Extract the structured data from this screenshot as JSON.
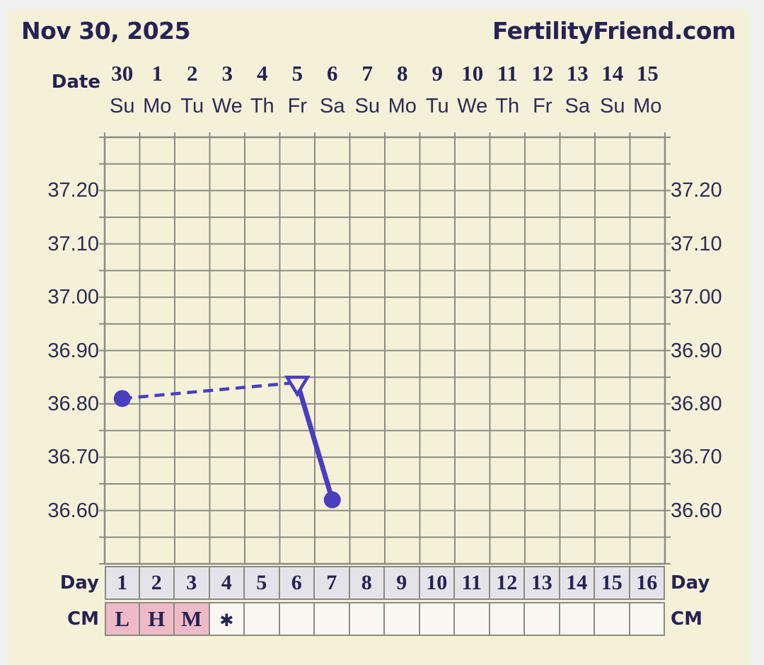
{
  "header": {
    "date": "Nov 30, 2025",
    "site": "FertilityFriend.com"
  },
  "labels": {
    "date_axis": "Date",
    "day_left": "Day",
    "day_right": "Day",
    "cm_left": "CM",
    "cm_right": "CM"
  },
  "colors": {
    "background": "#f5f1d8",
    "frame": "#f0f0f0",
    "navy_text": "#262254",
    "axis_text": "#2e2a55",
    "grid": "#8b8b84",
    "series": "#4a3ec0",
    "day_cell_bg": "#e4e3e9",
    "cm_cell_bg": "#f8f8f1",
    "cm_pink_bg": "#eebac7"
  },
  "chart_data": {
    "type": "line",
    "title": "Basal body temperature chart",
    "x": {
      "dates": [
        "30",
        "1",
        "2",
        "3",
        "4",
        "5",
        "6",
        "7",
        "8",
        "9",
        "10",
        "11",
        "12",
        "13",
        "14",
        "15"
      ],
      "weekdays": [
        "Su",
        "Mo",
        "Tu",
        "We",
        "Th",
        "Fr",
        "Sa",
        "Su",
        "Mo",
        "Tu",
        "We",
        "Th",
        "Fr",
        "Sa",
        "Su",
        "Mo"
      ],
      "cycle_days": [
        "1",
        "2",
        "3",
        "4",
        "5",
        "6",
        "7",
        "8",
        "9",
        "10",
        "11",
        "12",
        "13",
        "14",
        "15",
        "16"
      ]
    },
    "y": {
      "min": 36.5,
      "max": 37.3,
      "grid_step": 0.05,
      "tick_labels": [
        "37.20",
        "37.10",
        "37.00",
        "36.90",
        "36.80",
        "36.70",
        "36.60"
      ]
    },
    "grid": true,
    "series": [
      {
        "name": "temperature",
        "color": "#4a3ec0",
        "points": [
          {
            "cycle_day": 1,
            "date": "30",
            "weekday": "Su",
            "value": 36.81,
            "marker": "filled-circle"
          },
          {
            "cycle_day": 6,
            "date": "5",
            "weekday": "Fr",
            "value": 36.84,
            "marker": "open-triangle"
          },
          {
            "cycle_day": 7,
            "date": "6",
            "weekday": "Sa",
            "value": 36.62,
            "marker": "filled-circle"
          }
        ],
        "segments": [
          {
            "from_day": 1,
            "to_day": 6,
            "style": "dashed"
          },
          {
            "from_day": 6,
            "to_day": 7,
            "style": "solid"
          }
        ]
      }
    ],
    "cm_row": [
      {
        "day": "1",
        "value": "L",
        "pink": true
      },
      {
        "day": "2",
        "value": "H",
        "pink": true
      },
      {
        "day": "3",
        "value": "M",
        "pink": true
      },
      {
        "day": "4",
        "value": "✱",
        "pink": false
      },
      {
        "day": "5",
        "value": "",
        "pink": false
      },
      {
        "day": "6",
        "value": "",
        "pink": false
      },
      {
        "day": "7",
        "value": "",
        "pink": false
      },
      {
        "day": "8",
        "value": "",
        "pink": false
      },
      {
        "day": "9",
        "value": "",
        "pink": false
      },
      {
        "day": "10",
        "value": "",
        "pink": false
      },
      {
        "day": "11",
        "value": "",
        "pink": false
      },
      {
        "day": "12",
        "value": "",
        "pink": false
      },
      {
        "day": "13",
        "value": "",
        "pink": false
      },
      {
        "day": "14",
        "value": "",
        "pink": false
      },
      {
        "day": "15",
        "value": "",
        "pink": false
      },
      {
        "day": "16",
        "value": "",
        "pink": false
      }
    ]
  }
}
